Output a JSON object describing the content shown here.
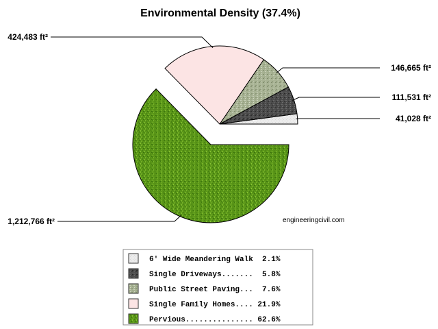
{
  "chart_data": {
    "type": "pie",
    "title": "Environmental Density (37.4%)",
    "watermark": "engineeringcivil.com",
    "slices": [
      {
        "name": "6' Wide Meandering Walk",
        "legend_label": "6' Wide Meandering Walk  2.1%",
        "value_label": "41,028 ft²",
        "value": 41028,
        "percent": 2.1,
        "color": "#e8e8e8",
        "pattern": "light-grey",
        "exploded": false
      },
      {
        "name": "Single Driveways",
        "legend_label": "Single Driveways.......  5.8%",
        "value_label": "111,531 ft²",
        "value": 111531,
        "percent": 5.8,
        "color": "#4a4a4a",
        "pattern": "dark-texture",
        "exploded": false
      },
      {
        "name": "Public Street Paving",
        "legend_label": "Public Street Paving...  7.6%",
        "value_label": "146,665 ft²",
        "value": 146665,
        "percent": 7.6,
        "color": "#a9b596",
        "pattern": "paving-texture",
        "exploded": false
      },
      {
        "name": "Single Family Homes",
        "legend_label": "Single Family Homes.... 21.9%",
        "value_label": "424,483 ft²",
        "value": 424483,
        "percent": 21.9,
        "color": "#fce4e4",
        "pattern": "solid-pink",
        "exploded": false
      },
      {
        "name": "Pervious",
        "legend_label": "Pervious............... 62.6%",
        "value_label": "1,212,766 ft²",
        "value": 1212766,
        "percent": 62.6,
        "color": "#5e9a1a",
        "pattern": "grass-texture",
        "exploded": true
      }
    ],
    "legend_placement": "bottom"
  }
}
